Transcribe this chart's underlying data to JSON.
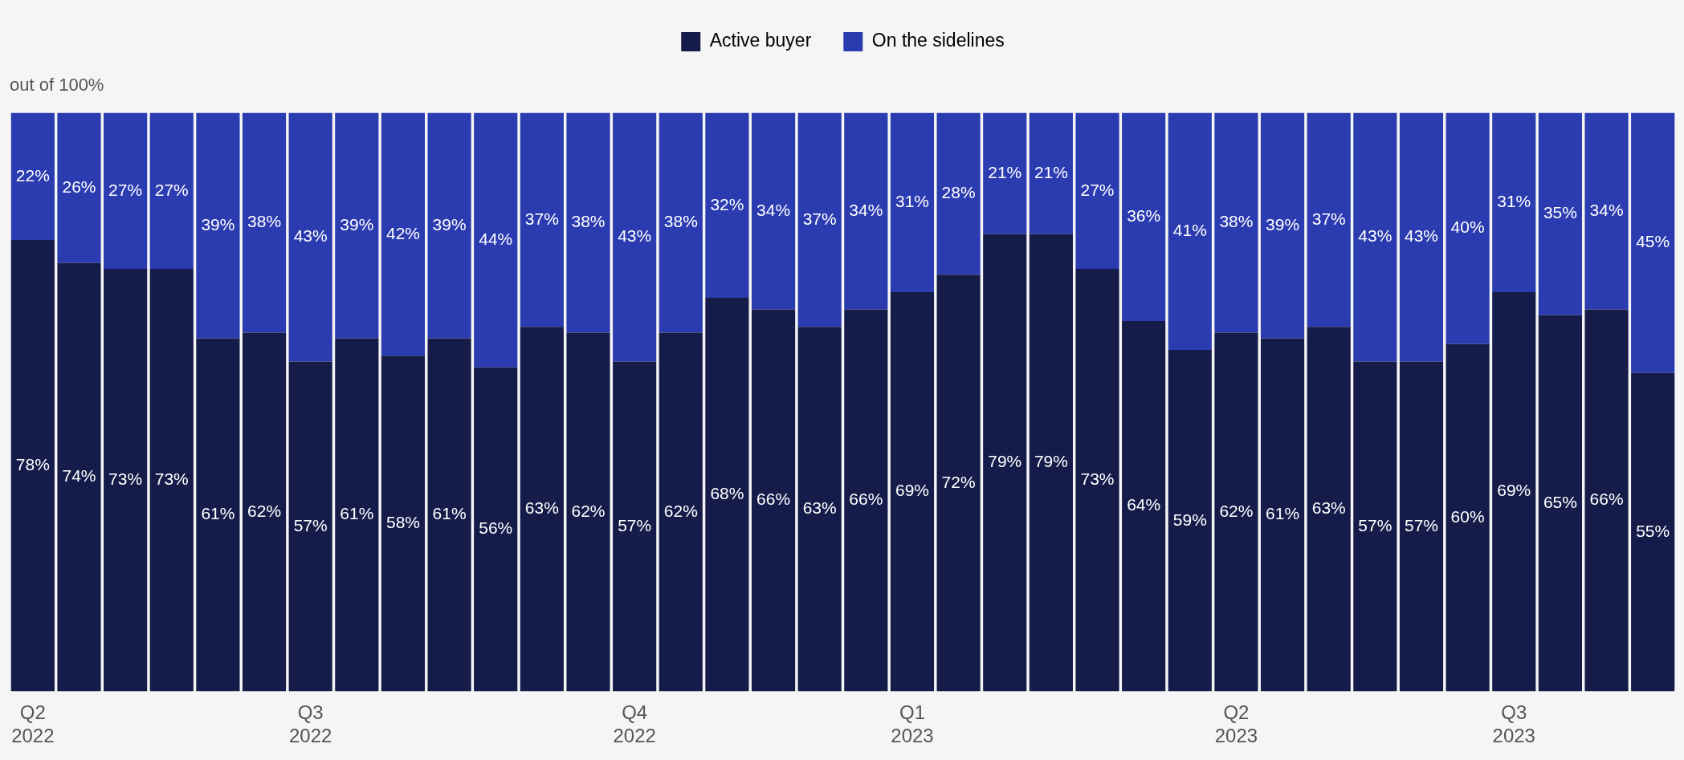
{
  "chart_data": {
    "type": "bar",
    "stacked": true,
    "ylabel": "out of 100%",
    "legend": "top",
    "grid": false,
    "categories": [
      "Q2 2022",
      null,
      null,
      null,
      null,
      null,
      "Q3 2022",
      null,
      null,
      null,
      null,
      null,
      null,
      "Q4 2022",
      null,
      null,
      null,
      null,
      null,
      "Q1 2023",
      null,
      null,
      null,
      null,
      null,
      null,
      "Q2 2023",
      null,
      null,
      null,
      null,
      null,
      "Q3 2023",
      null,
      null,
      null
    ],
    "series": [
      {
        "name": "Active buyer",
        "color": "#151c4a",
        "values": [
          78,
          74,
          73,
          73,
          61,
          62,
          57,
          61,
          58,
          61,
          56,
          63,
          62,
          57,
          62,
          68,
          66,
          63,
          66,
          69,
          72,
          79,
          79,
          73,
          64,
          59,
          62,
          61,
          63,
          57,
          57,
          60,
          69,
          65,
          66,
          55
        ],
        "value_labels": [
          "78%",
          "74%",
          "73%",
          "73%",
          "61%",
          "62%",
          "57%",
          "61%",
          "58%",
          "61%",
          "56%",
          "63%",
          "62%",
          "57%",
          "62%",
          "68%",
          "66%",
          "63%",
          "66%",
          "69%",
          "72%",
          "79%",
          "79%",
          "73%",
          "64%",
          "59%",
          "62%",
          "61%",
          "63%",
          "57%",
          "57%",
          "60%",
          "69%",
          "65%",
          "66%",
          "55%"
        ]
      },
      {
        "name": "On the sidelines",
        "color": "#2b3bb0",
        "values": [
          22,
          26,
          27,
          27,
          39,
          38,
          43,
          39,
          42,
          39,
          44,
          37,
          38,
          43,
          38,
          32,
          34,
          37,
          34,
          31,
          28,
          21,
          21,
          27,
          36,
          41,
          38,
          39,
          37,
          43,
          43,
          40,
          31,
          35,
          34,
          45
        ],
        "value_labels": [
          "22%",
          "26%",
          "27%",
          "27%",
          "39%",
          "38%",
          "43%",
          "39%",
          "42%",
          "39%",
          "44%",
          "37%",
          "38%",
          "43%",
          "38%",
          "32%",
          "34%",
          "37%",
          "34%",
          "31%",
          "28%",
          "21%",
          "21%",
          "27%",
          "36%",
          "41%",
          "38%",
          "39%",
          "37%",
          "43%",
          "43%",
          "40%",
          "31%",
          "35%",
          "34%",
          "45%"
        ]
      }
    ]
  }
}
